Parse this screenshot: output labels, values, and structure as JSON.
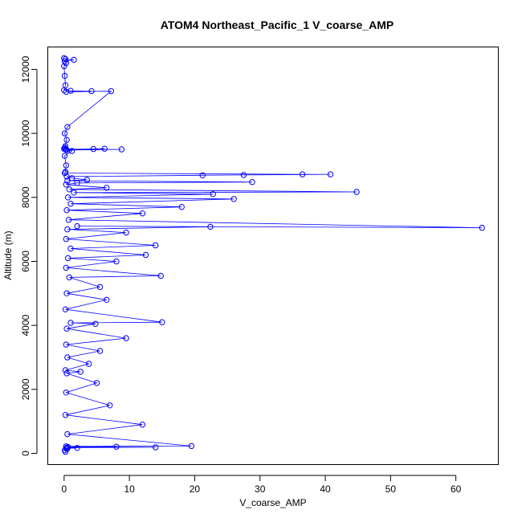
{
  "chart_data": {
    "type": "line",
    "title": "ATOM4 Northeast_Pacific_1 V_coarse_AMP",
    "xlabel": "V_coarse_AMP",
    "ylabel": "Altitude (m)",
    "xlim": [
      -2.5,
      66.5
    ],
    "ylim": [
      -350,
      12700
    ],
    "xticks": [
      0,
      10,
      20,
      30,
      40,
      50,
      60
    ],
    "yticks": [
      0,
      2000,
      4000,
      6000,
      8000,
      10000,
      12000
    ],
    "grid": false,
    "legend": "none",
    "color": "#0000ff",
    "series": [
      {
        "x": [
          0.0,
          0.2,
          1.5,
          0.1,
          0.3,
          0.0,
          0.1,
          0.2,
          0.0,
          1.0,
          4.2,
          0.3,
          7.2,
          0.5,
          0.1,
          0.4,
          0.2,
          0.1,
          0.0,
          0.3,
          4.5,
          6.2,
          0.2,
          8.8,
          0.4,
          1.2,
          0.1,
          0.3,
          0.2,
          0.1,
          36.5,
          40.8,
          27.5,
          21.2,
          0.4,
          1.2,
          3.5,
          0.5,
          28.8,
          2.0,
          0.3,
          6.5,
          0.8,
          44.8,
          1.5,
          22.8,
          0.6,
          26.0,
          1.0,
          18.0,
          0.4,
          12.0,
          0.7,
          64.0,
          2.0,
          22.4,
          0.5,
          9.5,
          0.3,
          14.0,
          1.0,
          12.5,
          0.6,
          8.0,
          0.3,
          14.8,
          0.8,
          5.5,
          0.4,
          6.5,
          0.2,
          15.0,
          1.0,
          4.8,
          0.4,
          9.5,
          0.3,
          5.5,
          0.5,
          3.8,
          0.2,
          2.5,
          0.4,
          5.0,
          0.3,
          7.0,
          0.2,
          12.0,
          0.5,
          19.5,
          0.3,
          8.0,
          0.6,
          14.0,
          0.4,
          2.0,
          0.3,
          0.5,
          0.1,
          0.2
        ],
        "y": [
          12350,
          12320,
          12300,
          12250,
          12200,
          12100,
          11800,
          11500,
          11350,
          11330,
          11320,
          11300,
          11320,
          10200,
          10000,
          9800,
          9600,
          9550,
          9520,
          9500,
          9510,
          9520,
          9500,
          9500,
          9480,
          9450,
          9300,
          9000,
          8800,
          8760,
          8720,
          8720,
          8700,
          8690,
          8650,
          8600,
          8550,
          8520,
          8480,
          8450,
          8400,
          8300,
          8250,
          8170,
          8150,
          8100,
          8000,
          7950,
          7800,
          7700,
          7600,
          7500,
          7300,
          7050,
          7100,
          7080,
          7000,
          6900,
          6700,
          6500,
          6400,
          6200,
          6100,
          6000,
          5800,
          5550,
          5500,
          5200,
          5000,
          4800,
          4500,
          4100,
          4080,
          4050,
          3900,
          3600,
          3400,
          3200,
          3000,
          2800,
          2600,
          2550,
          2500,
          2200,
          1900,
          1500,
          1200,
          900,
          600,
          230,
          220,
          210,
          200,
          190,
          180,
          170,
          160,
          150,
          100,
          50
        ]
      }
    ]
  }
}
